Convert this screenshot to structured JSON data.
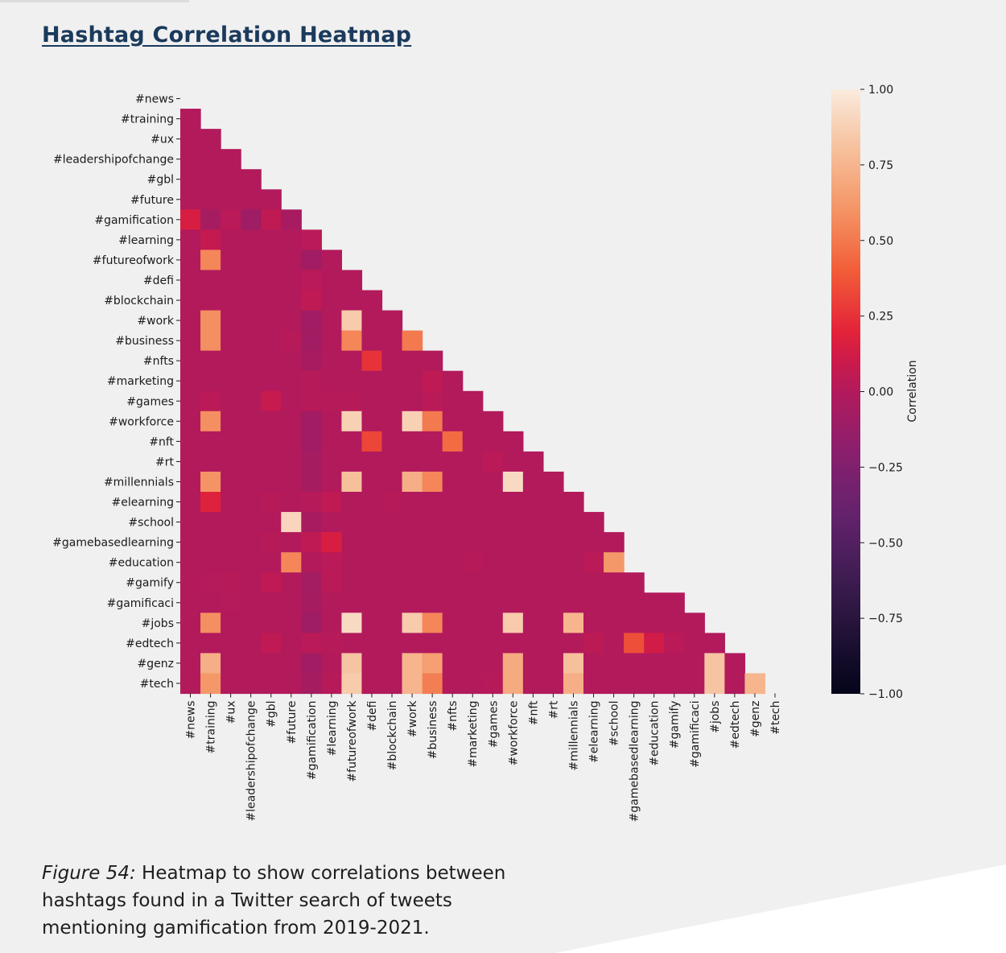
{
  "page": {
    "title": "Hashtag Correlation Heatmap",
    "caption_label": "Figure 54:",
    "caption_text": " Heatmap to show correlations between hashtags found in a Twitter search of tweets mentioning gamification from 2019-2021."
  },
  "chart_data": {
    "type": "heatmap",
    "mask": "upper-triangle-including-diagonal",
    "categories": [
      "#news",
      "#training",
      "#ux",
      "#leadershipofchange",
      "#gbl",
      "#future",
      "#gamification",
      "#learning",
      "#futureofwork",
      "#defi",
      "#blockchain",
      "#work",
      "#business",
      "#nfts",
      "#marketing",
      "#games",
      "#workforce",
      "#nft",
      "#rt",
      "#millennials",
      "#elearning",
      "#school",
      "#gamebasedlearning",
      "#education",
      "#gamify",
      "#gamificaci",
      "#jobs",
      "#edtech",
      "#genz",
      "#tech"
    ],
    "colorbar": {
      "label": "Correlation",
      "min": -1.0,
      "max": 1.0,
      "ticks": [
        1.0,
        0.75,
        0.5,
        0.25,
        0.0,
        -0.25,
        -0.5,
        -0.75,
        -1.0
      ],
      "tick_labels": [
        "1.00",
        "0.75",
        "0.50",
        "0.25",
        "0.00",
        "−0.25",
        "−0.50",
        "−0.75",
        "−1.00"
      ],
      "colormap": "rocket"
    },
    "matrix": [
      [],
      [
        0.0
      ],
      [
        0.0,
        0.0
      ],
      [
        0.0,
        0.0,
        0.0
      ],
      [
        0.0,
        0.0,
        0.0,
        0.0
      ],
      [
        0.0,
        0.0,
        0.0,
        0.0,
        0.0
      ],
      [
        0.15,
        -0.06,
        0.03,
        -0.1,
        0.05,
        -0.05
      ],
      [
        0.0,
        0.07,
        0.0,
        0.0,
        0.0,
        0.0,
        0.03
      ],
      [
        0.0,
        0.55,
        0.0,
        0.0,
        0.0,
        0.0,
        -0.08,
        0.0
      ],
      [
        0.0,
        0.0,
        0.0,
        0.0,
        0.0,
        0.0,
        0.03,
        0.0,
        0.0
      ],
      [
        0.0,
        0.0,
        0.0,
        0.0,
        0.0,
        0.0,
        0.05,
        0.0,
        0.0,
        0.0
      ],
      [
        0.0,
        0.58,
        0.0,
        0.0,
        0.0,
        0.0,
        -0.08,
        0.0,
        0.85,
        0.0,
        0.0
      ],
      [
        0.0,
        0.58,
        0.0,
        0.0,
        0.0,
        0.02,
        -0.08,
        0.0,
        0.55,
        0.0,
        0.0,
        0.5
      ],
      [
        0.0,
        0.0,
        0.0,
        0.0,
        0.0,
        0.0,
        -0.05,
        0.0,
        0.0,
        0.25,
        0.0,
        0.0,
        0.0
      ],
      [
        0.0,
        0.0,
        0.0,
        0.0,
        0.0,
        0.0,
        0.02,
        0.0,
        0.0,
        0.0,
        0.0,
        0.0,
        0.05,
        0.0
      ],
      [
        0.0,
        0.03,
        0.0,
        0.0,
        0.08,
        0.0,
        0.02,
        0.02,
        0.02,
        0.0,
        0.0,
        0.0,
        0.03,
        0.0,
        0.0
      ],
      [
        0.0,
        0.58,
        0.0,
        0.0,
        0.0,
        0.0,
        -0.08,
        0.0,
        0.88,
        0.0,
        0.0,
        0.88,
        0.5,
        0.0,
        0.0,
        0.0
      ],
      [
        0.0,
        0.0,
        0.0,
        0.0,
        0.0,
        0.0,
        -0.08,
        0.0,
        0.0,
        0.32,
        0.0,
        0.0,
        0.0,
        0.45,
        0.0,
        0.0,
        0.0
      ],
      [
        0.0,
        0.0,
        0.0,
        0.0,
        0.0,
        0.0,
        -0.06,
        0.0,
        0.0,
        0.0,
        0.0,
        0.0,
        0.0,
        0.0,
        0.0,
        0.03,
        0.0,
        0.0
      ],
      [
        0.0,
        0.6,
        0.0,
        0.0,
        0.0,
        0.0,
        -0.06,
        0.0,
        0.8,
        0.0,
        0.0,
        0.72,
        0.55,
        0.0,
        0.0,
        0.0,
        0.92,
        0.0,
        0.0
      ],
      [
        0.0,
        0.18,
        0.0,
        0.0,
        0.02,
        0.0,
        0.02,
        0.05,
        0.0,
        0.0,
        0.02,
        0.0,
        0.0,
        0.0,
        0.0,
        0.0,
        0.0,
        0.0,
        0.0,
        0.0
      ],
      [
        0.0,
        0.0,
        0.0,
        0.0,
        0.0,
        0.9,
        -0.05,
        0.0,
        0.0,
        0.0,
        0.0,
        0.0,
        0.0,
        0.0,
        0.0,
        0.0,
        0.0,
        0.0,
        0.0,
        0.0,
        0.0
      ],
      [
        0.0,
        0.0,
        0.0,
        0.0,
        0.02,
        0.0,
        0.05,
        0.15,
        0.0,
        0.0,
        0.0,
        0.0,
        0.0,
        0.0,
        0.0,
        0.0,
        0.0,
        0.0,
        0.0,
        0.0,
        0.0,
        0.0
      ],
      [
        0.0,
        0.0,
        0.0,
        0.0,
        0.0,
        0.55,
        0.0,
        0.03,
        0.0,
        0.0,
        0.0,
        0.0,
        0.0,
        0.0,
        0.02,
        0.0,
        0.0,
        0.0,
        0.0,
        0.0,
        0.03,
        0.62
      ],
      [
        0.0,
        0.01,
        0.02,
        0.0,
        0.05,
        0.0,
        -0.07,
        0.03,
        0.0,
        0.0,
        0.0,
        0.0,
        0.0,
        0.0,
        0.0,
        0.0,
        0.0,
        0.0,
        0.0,
        0.0,
        0.0,
        0.0,
        0.0
      ],
      [
        0.0,
        0.0,
        0.01,
        0.0,
        0.0,
        0.0,
        -0.06,
        0.0,
        0.0,
        0.0,
        0.0,
        0.0,
        0.0,
        0.0,
        0.0,
        0.0,
        0.0,
        0.0,
        0.0,
        0.0,
        0.0,
        0.0,
        0.0,
        0.0,
        0.0
      ],
      [
        0.0,
        0.58,
        0.0,
        0.0,
        0.0,
        0.0,
        -0.1,
        0.0,
        0.92,
        0.0,
        0.0,
        0.85,
        0.55,
        0.0,
        0.0,
        0.0,
        0.85,
        0.0,
        0.0,
        0.75,
        0.0,
        0.0,
        0.0,
        0.0,
        0.0,
        0.0
      ],
      [
        0.0,
        0.0,
        0.0,
        0.0,
        0.05,
        0.0,
        0.03,
        0.02,
        0.0,
        0.0,
        0.0,
        0.0,
        0.0,
        0.0,
        0.0,
        0.0,
        0.0,
        0.0,
        0.0,
        0.0,
        0.04,
        0.0,
        0.35,
        0.12,
        0.03,
        0.0,
        0.0
      ],
      [
        0.0,
        0.72,
        0.0,
        0.0,
        0.0,
        0.0,
        -0.08,
        0.0,
        0.82,
        0.0,
        0.0,
        0.75,
        0.65,
        0.0,
        0.0,
        0.0,
        0.7,
        0.0,
        0.0,
        0.8,
        0.0,
        0.0,
        0.0,
        0.0,
        0.0,
        0.0,
        0.82,
        0.0
      ],
      [
        0.0,
        0.62,
        0.0,
        0.0,
        0.0,
        0.0,
        -0.06,
        0.02,
        0.85,
        0.0,
        0.0,
        0.75,
        0.52,
        0.0,
        0.0,
        0.02,
        0.7,
        0.0,
        0.0,
        0.72,
        0.0,
        0.0,
        0.0,
        0.0,
        0.0,
        0.0,
        0.82,
        0.0,
        0.75
      ]
    ]
  },
  "colors": {
    "title": "#1b3a5c",
    "background": "#f0f0f0"
  }
}
